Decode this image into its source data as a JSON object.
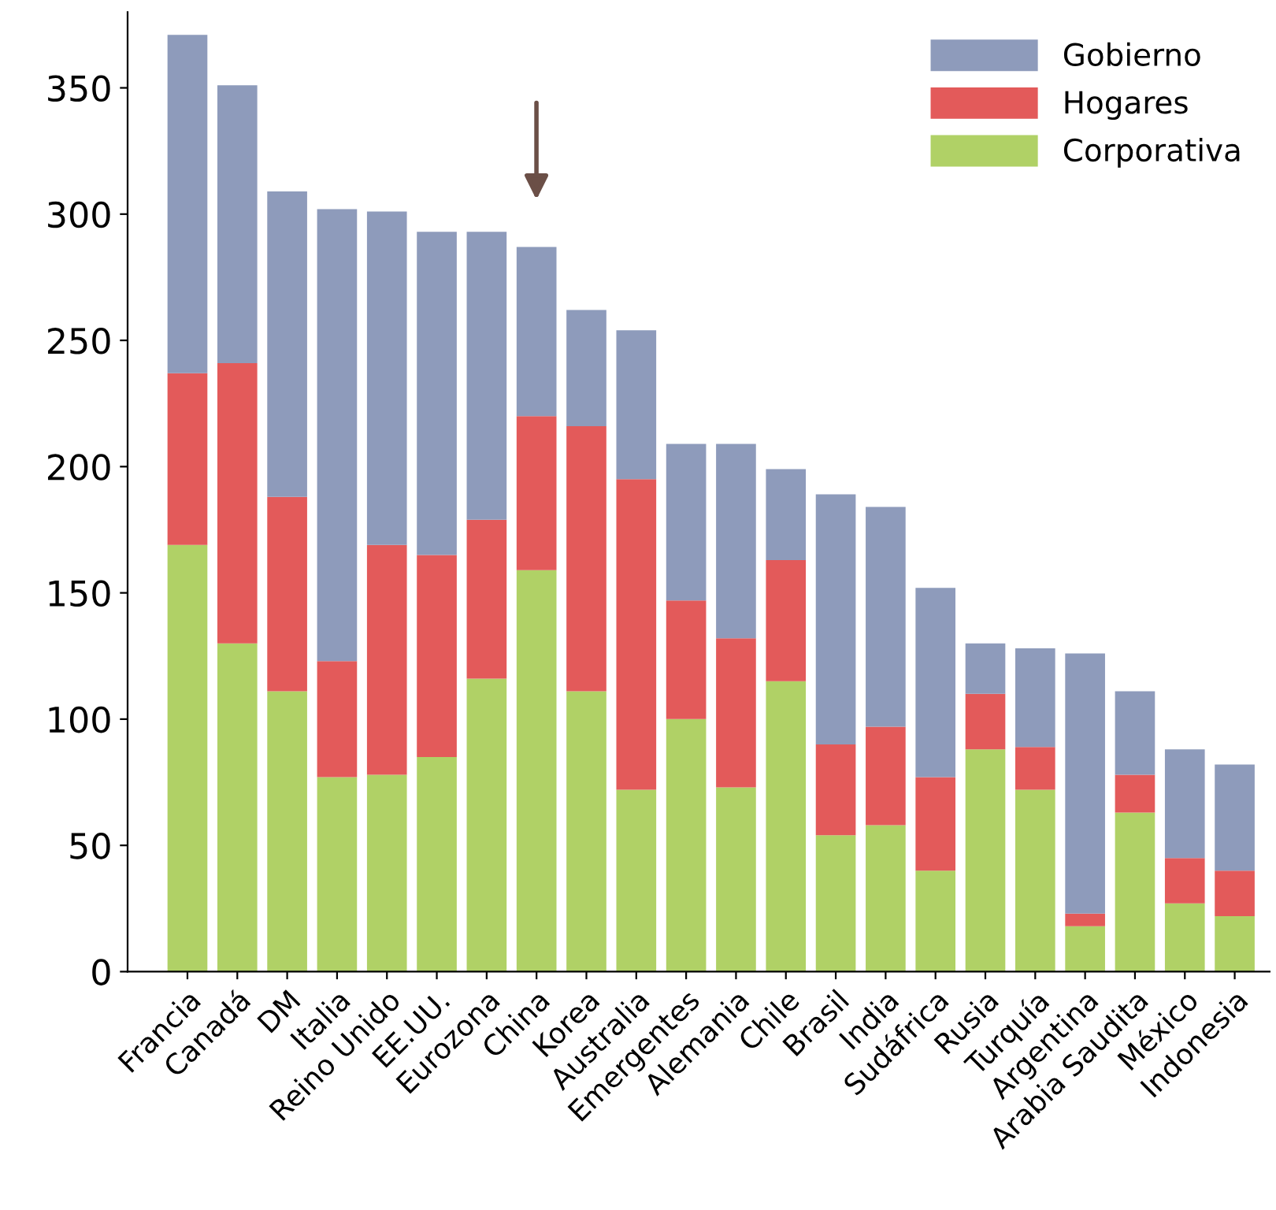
{
  "chart_data": {
    "type": "bar",
    "stacked": true,
    "categories": [
      "Francia",
      "Canadá",
      "DM",
      "Italia",
      "Reino Unido",
      "EE.UU.",
      "Eurozona",
      "China",
      "Korea",
      "Australia",
      "Emergentes",
      "Alemania",
      "Chile",
      "Brasil",
      "India",
      "Sudáfrica",
      "Rusia",
      "Turquía",
      "Argentina",
      "Arabia Saudita",
      "México",
      "Indonesia"
    ],
    "series": [
      {
        "name": "Corporativa",
        "color": "#b0d166",
        "values": [
          169,
          130,
          111,
          77,
          78,
          85,
          116,
          159,
          111,
          72,
          100,
          73,
          115,
          54,
          58,
          40,
          88,
          72,
          18,
          63,
          27,
          22
        ]
      },
      {
        "name": "Hogares",
        "color": "#e35a5a",
        "values": [
          68,
          111,
          77,
          46,
          91,
          80,
          63,
          61,
          105,
          123,
          47,
          59,
          48,
          36,
          39,
          37,
          22,
          17,
          5,
          15,
          18,
          18
        ]
      },
      {
        "name": "Gobierno",
        "color": "#8e9bbb",
        "values": [
          134,
          110,
          121,
          179,
          132,
          128,
          114,
          67,
          46,
          59,
          62,
          77,
          36,
          99,
          87,
          75,
          20,
          39,
          103,
          33,
          43,
          42
        ]
      }
    ],
    "ylim": [
      0,
      380
    ],
    "yticks": [
      0,
      50,
      100,
      150,
      200,
      250,
      300,
      350
    ],
    "grid": false,
    "legend": "top right"
  }
}
